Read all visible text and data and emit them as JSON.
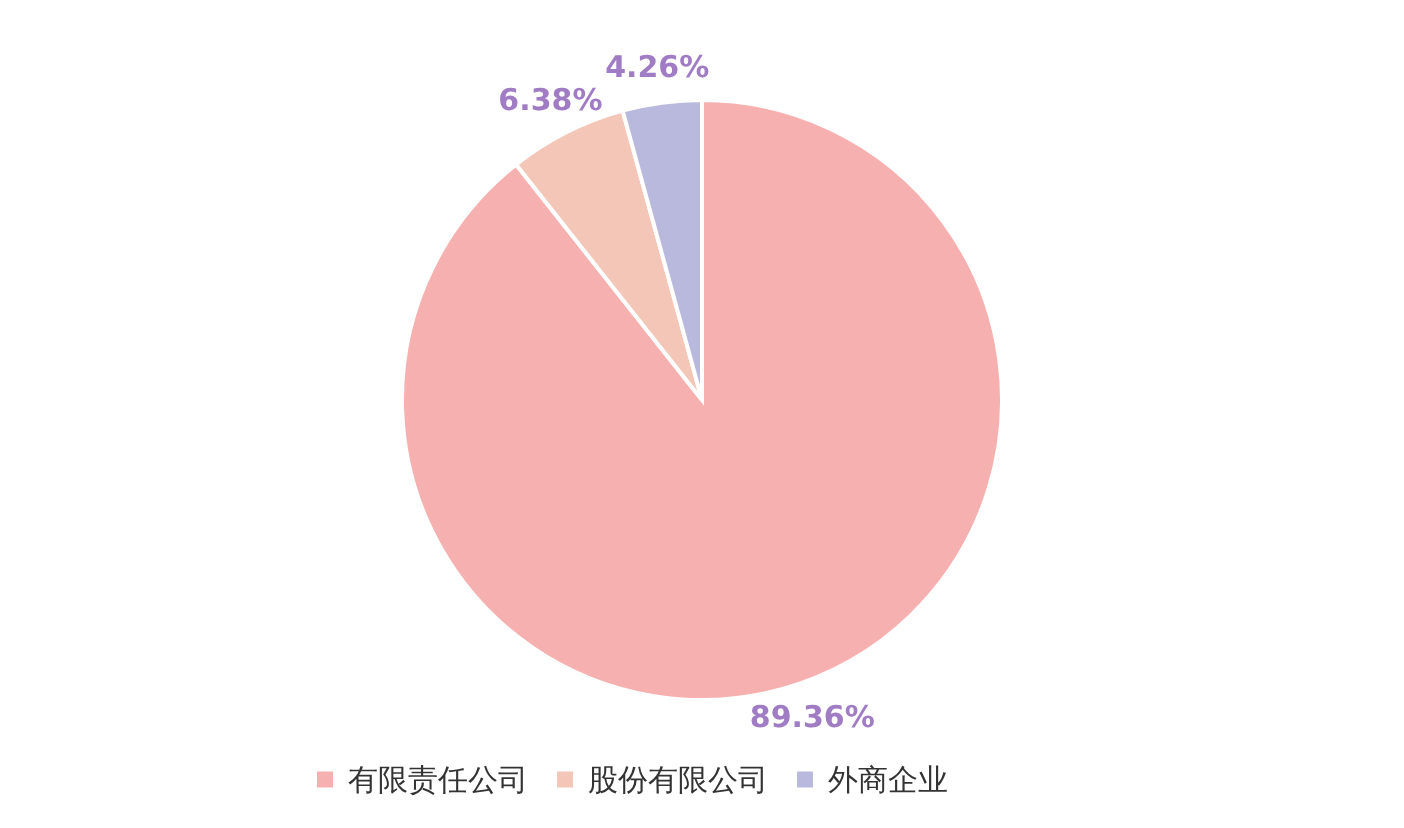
{
  "chart_data": {
    "type": "pie",
    "categories": [
      "有限责任公司",
      "股份有限公司",
      "外商企业"
    ],
    "values": [
      89.36,
      6.38,
      4.26
    ],
    "colors": [
      "#f7b0b0",
      "#f4c6b7",
      "#b9b9de"
    ],
    "value_labels": [
      "89.36%",
      "6.38%",
      "4.26%"
    ],
    "legend": "bottom"
  }
}
